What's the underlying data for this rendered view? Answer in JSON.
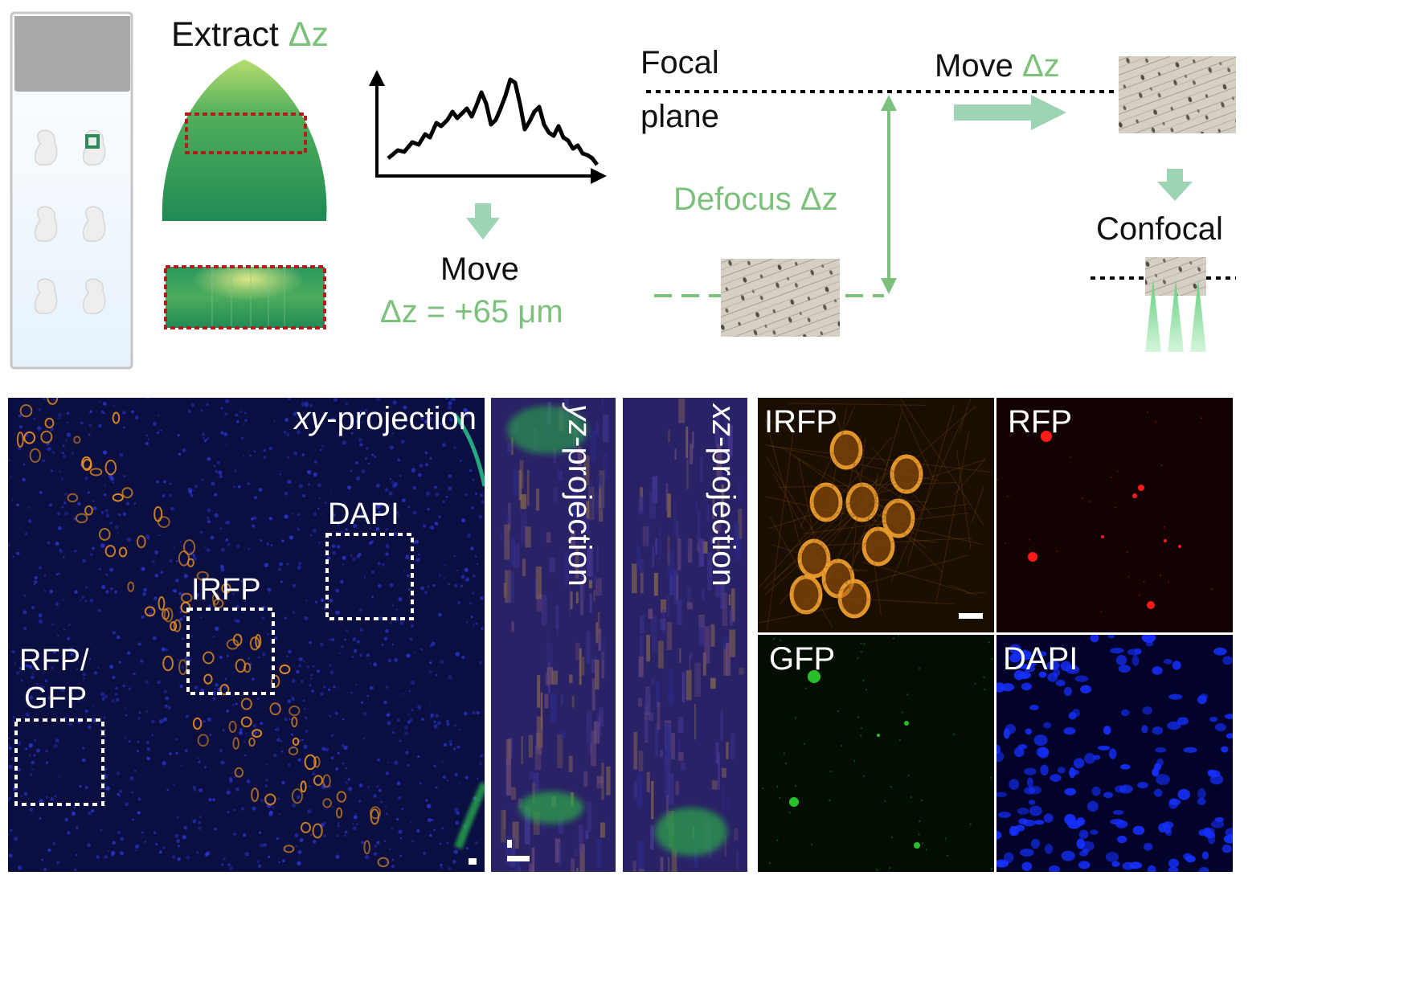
{
  "colors": {
    "accent_green": "#7cc17b",
    "arrow_green": "#9dd4b4",
    "slide_gray": "#a9a9a9",
    "roi_red": "#b21e1e",
    "dapi_blue": "#1a1a90",
    "irfp_orange": "#e8901f",
    "rfp_red": "#ff1010",
    "gfp_green": "#1ea81e"
  },
  "top": {
    "extract": {
      "word": "Extract",
      "delta": "Δz"
    },
    "move_step": {
      "move": "Move",
      "delta_value": "Δz = +65 μm"
    },
    "focal_plane": {
      "line1": "Focal",
      "line2": "plane"
    },
    "defocus": "Defocus Δz",
    "move_right": {
      "word": "Move",
      "delta": "Δz"
    },
    "confocal": "Confocal"
  },
  "bottom": {
    "xy": {
      "italic": "xy",
      "rest": "-projection"
    },
    "roi_labels": {
      "dapi": "DAPI",
      "irfp": "IRFP",
      "rfp_gfp_line1": "RFP/",
      "rfp_gfp_line2": "GFP"
    },
    "yz": {
      "italic": "yz",
      "rest": "-projection"
    },
    "xz": {
      "italic": "xz",
      "rest": "-projection"
    },
    "channels": {
      "irfp": "IRFP",
      "rfp": "RFP",
      "gfp": "GFP",
      "dapi": "DAPI"
    }
  }
}
